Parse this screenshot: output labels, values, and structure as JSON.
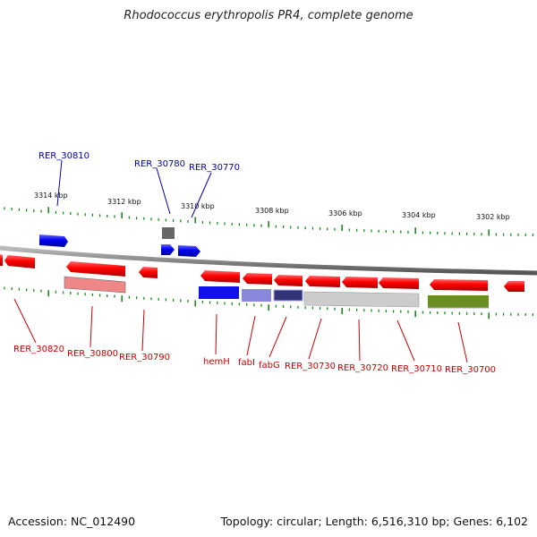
{
  "header": {
    "title": "Rhodococcus erythropolis PR4, complete genome"
  },
  "footer": {
    "accession": "Accession: NC_012490",
    "summary": "Topology: circular; Length: 6,516,310 bp; Genes: 6,102"
  },
  "colors": {
    "gene_red": "#ff0000",
    "gene_blue": "#0000ee",
    "label_red": "#cc0000",
    "label_blue": "#0000aa",
    "tick_green": "#1a8c1a",
    "backbone": "#888888",
    "feature_pink": "#ee8888",
    "feature_gray": "#777777",
    "feature_lavender": "#8888dd",
    "feature_navy": "#333377",
    "feature_lightgray": "#cccccc",
    "feature_olive": "#6b8e23"
  },
  "scale": {
    "ticks": [
      "3314 kbp",
      "3312 kbp",
      "3310 kbp",
      "3308 kbp",
      "3306 kbp",
      "3304 kbp",
      "3302 kbp"
    ]
  },
  "genes_top": [
    {
      "label": "RER_30810",
      "color": "blue"
    },
    {
      "label": "RER_30780",
      "color": "blue"
    },
    {
      "label": "RER_30770",
      "color": "blue"
    }
  ],
  "genes_bottom": [
    {
      "label": "RER_30820",
      "color": "red"
    },
    {
      "label": "RER_30800",
      "color": "red"
    },
    {
      "label": "RER_30790",
      "color": "red"
    },
    {
      "label": "hemH",
      "color": "red"
    },
    {
      "label": "fabI",
      "color": "red"
    },
    {
      "label": "fabG",
      "color": "red"
    },
    {
      "label": "RER_30730",
      "color": "red"
    },
    {
      "label": "RER_30720",
      "color": "red"
    },
    {
      "label": "RER_30710",
      "color": "red"
    },
    {
      "label": "RER_30700",
      "color": "red"
    }
  ]
}
